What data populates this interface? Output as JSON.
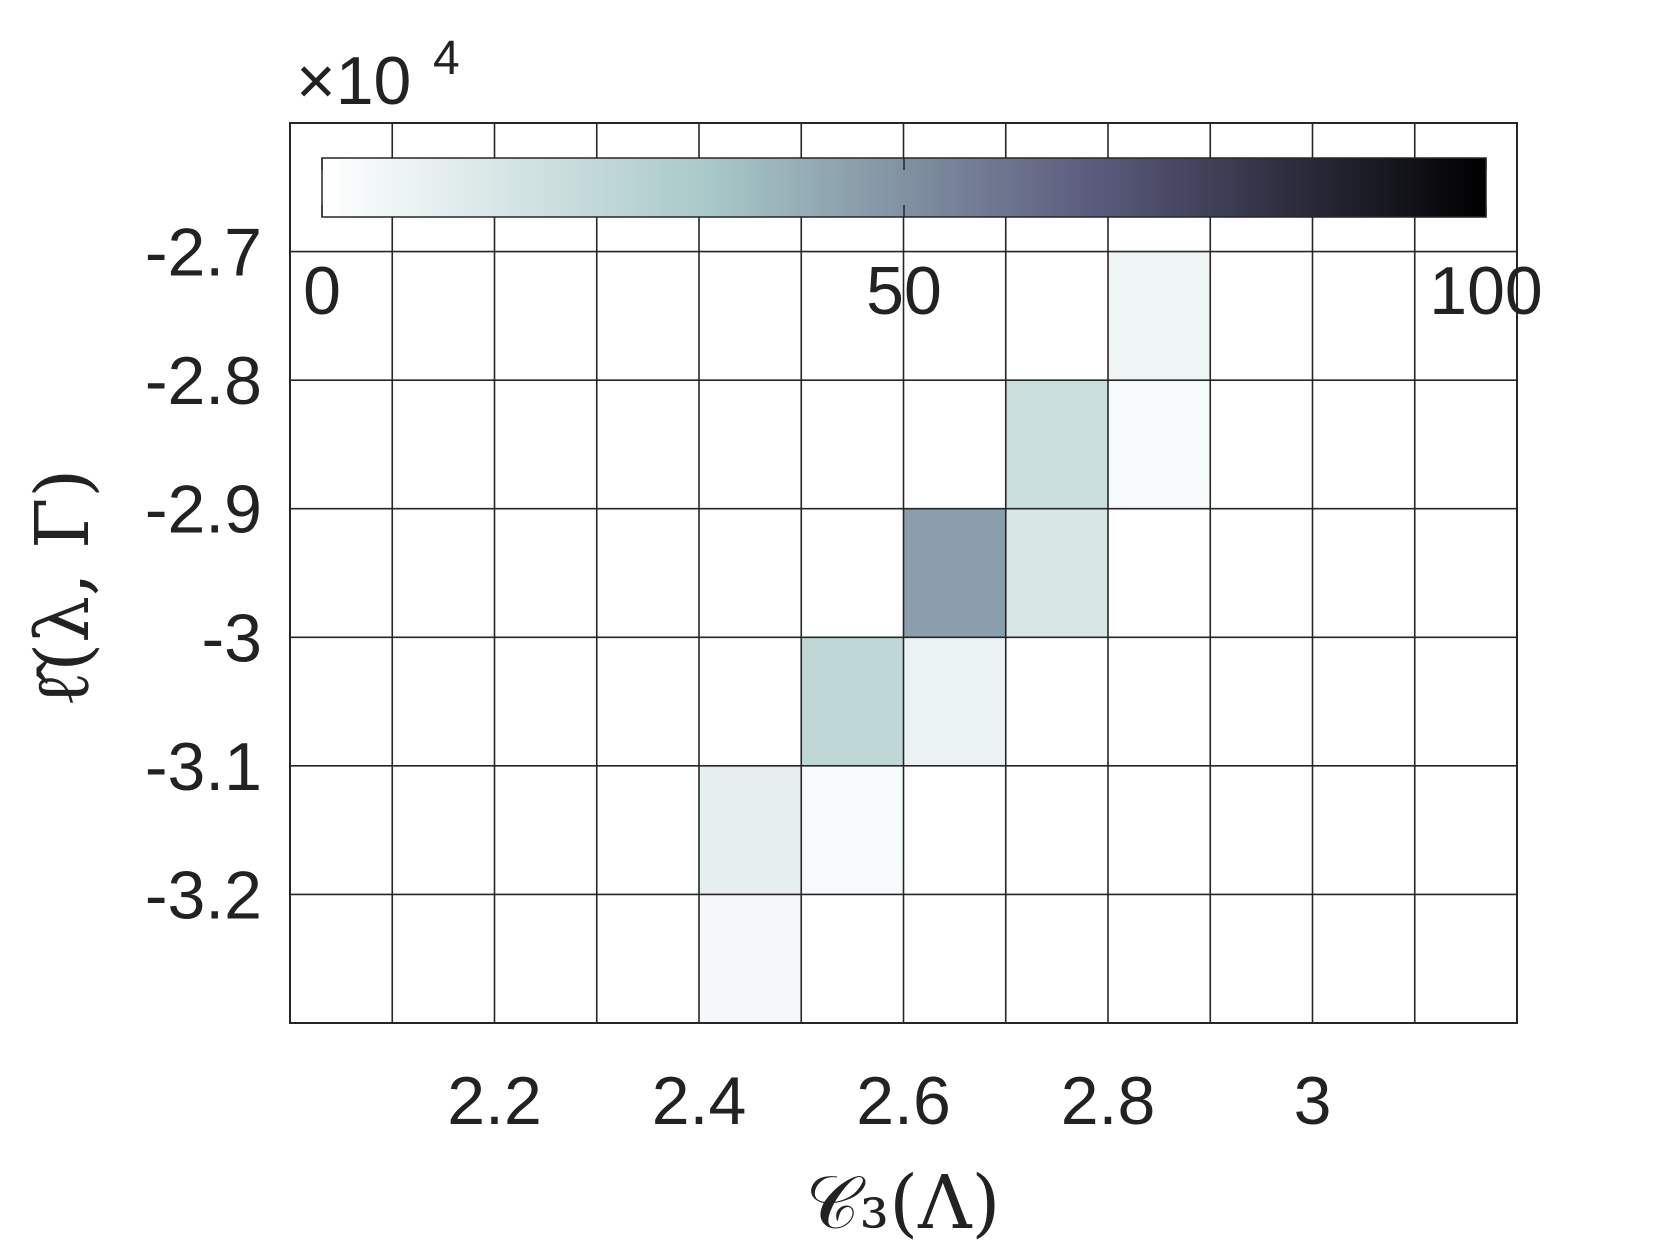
{
  "chart_data": {
    "type": "heatmap",
    "xlabel": "𝒞₃(Λ)",
    "ylabel": "ℓ̂(λ, Γ)",
    "x_bin_edges": [
      2.0,
      2.1,
      2.2,
      2.3,
      2.4,
      2.5,
      2.6,
      2.7,
      2.8,
      2.9,
      3.0,
      3.1,
      3.2
    ],
    "y_bin_edges": [
      -3.3,
      -3.2,
      -3.1,
      -3.0,
      -2.9,
      -2.8,
      -2.7,
      -2.6
    ],
    "xlim": [
      2.0,
      3.2
    ],
    "ylim": [
      -3.3,
      -2.6
    ],
    "x_ticks": [
      2.2,
      2.4,
      2.6,
      2.8,
      3.0
    ],
    "x_tick_labels": [
      "2.2",
      "2.4",
      "2.6",
      "2.8",
      "3"
    ],
    "y_ticks": [
      -2.7,
      -2.8,
      -2.9,
      -3.0,
      -3.1,
      -3.2
    ],
    "y_tick_labels": [
      "-2.7",
      "-2.8",
      "-2.9",
      "-3",
      "-3.1",
      "-3.2"
    ],
    "grid": true,
    "cells": [
      {
        "x": 2.45,
        "y": -3.25,
        "value": 4
      },
      {
        "x": 2.45,
        "y": -3.15,
        "value": 10
      },
      {
        "x": 2.55,
        "y": -3.15,
        "value": 3
      },
      {
        "x": 2.55,
        "y": -3.05,
        "value": 24
      },
      {
        "x": 2.65,
        "y": -3.05,
        "value": 8
      },
      {
        "x": 2.65,
        "y": -2.95,
        "value": 46
      },
      {
        "x": 2.75,
        "y": -2.95,
        "value": 15
      },
      {
        "x": 2.75,
        "y": -2.85,
        "value": 20
      },
      {
        "x": 2.85,
        "y": -2.85,
        "value": 3
      },
      {
        "x": 2.85,
        "y": -2.75,
        "value": 6
      }
    ],
    "colorbar": {
      "orientation": "horizontal",
      "placement": "top inside axes",
      "range": [
        0,
        100
      ],
      "ticks": [
        0,
        50,
        100
      ],
      "tick_labels": [
        "0",
        "50",
        "100"
      ],
      "exponent_base": "×10",
      "exponent_power": "4",
      "colormap": "bone (reversed)",
      "stops": [
        "#ffffff",
        "#a8c8c8",
        "#5a5a7c",
        "#000000"
      ]
    }
  }
}
